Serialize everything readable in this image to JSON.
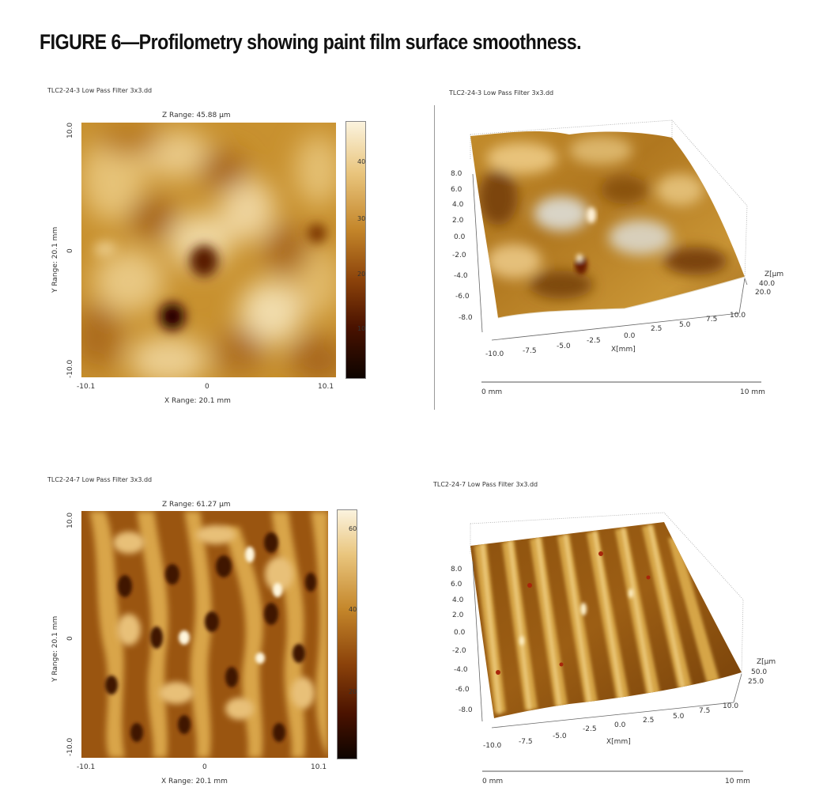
{
  "figure": {
    "title": "FIGURE 6—Profilometry showing paint film surface smoothness."
  },
  "panel_top_left": {
    "file": "TLC2-24-3 Low Pass Filter 3x3.dd",
    "z_range": "Z Range: 45.88 μm",
    "y_range": "Y Range: 20.1 mm",
    "x_range": "X Range: 20.1 mm",
    "y_ticks": [
      "10.0",
      "0",
      "-10.0"
    ],
    "x_ticks": [
      "-10.1",
      "0",
      "10.1"
    ],
    "cbar_ticks": [
      "40",
      "30",
      "20",
      "10"
    ]
  },
  "panel_top_right": {
    "file": "TLC2-24-3 Low Pass Filter 3x3.dd",
    "y_ticks": [
      "8.0",
      "6.0",
      "4.0",
      "2.0",
      "0.0",
      "-2.0",
      "-4.0",
      "-6.0",
      "-8.0"
    ],
    "x_ticks": [
      "-10.0",
      "-7.5",
      "-5.0",
      "-2.5",
      "0.0",
      "2.5",
      "5.0",
      "7.5",
      "10.0"
    ],
    "x_label": "X[mm]",
    "z_label": "Z[μm",
    "z_ticks": [
      "40.0",
      "20.0"
    ],
    "scale_left": "0 mm",
    "scale_right": "10 mm"
  },
  "panel_bottom_left": {
    "file": "TLC2-24-7 Low Pass Filter 3x3.dd",
    "z_range": "Z Range: 61.27 μm",
    "y_range": "Y Range: 20.1 mm",
    "x_range": "X Range: 20.1 mm",
    "y_ticks": [
      "10.0",
      "0",
      "-10.0"
    ],
    "x_ticks": [
      "-10.1",
      "0",
      "10.1"
    ],
    "cbar_ticks": [
      "60",
      "40",
      "20"
    ]
  },
  "panel_bottom_right": {
    "file": "TLC2-24-7 Low Pass Filter 3x3.dd",
    "y_ticks": [
      "8.0",
      "6.0",
      "4.0",
      "2.0",
      "0.0",
      "-2.0",
      "-4.0",
      "-6.0",
      "-8.0"
    ],
    "x_ticks": [
      "-10.0",
      "-7.5",
      "-5.0",
      "-2.5",
      "0.0",
      "2.5",
      "5.0",
      "7.5",
      "10.0"
    ],
    "x_label": "X[mm]",
    "z_label": "Z[μm",
    "z_ticks": [
      "50.0",
      "25.0"
    ],
    "scale_left": "0 mm",
    "scale_right": "10 mm"
  },
  "colors": {
    "dark": "#1a0800",
    "mid_dark": "#5a1e02",
    "mid": "#b06a0e",
    "light": "#e1b35a",
    "highlight": "#fbf3de"
  }
}
